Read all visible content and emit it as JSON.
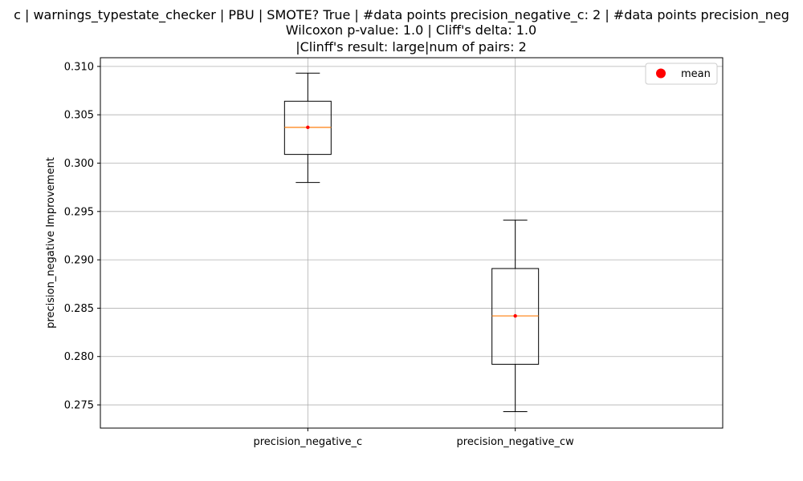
{
  "chart_data": {
    "type": "box",
    "title_lines": [
      "c | warnings_typestate_checker | PBU | SMOTE? True | #data points precision_negative_c: 2 | #data points precision_neg",
      "Wilcoxon p-value: 1.0 | Cliff's delta: 1.0",
      "|Clinff's result: large|num of pairs: 2"
    ],
    "ylabel": "precision_negative Improvement",
    "xlabel": "",
    "ylim": [
      0.2726,
      0.3109
    ],
    "yticks": [
      "0.275",
      "0.280",
      "0.285",
      "0.290",
      "0.295",
      "0.300",
      "0.305",
      "0.310"
    ],
    "grid": true,
    "legend": {
      "position": "top-right",
      "entries": [
        {
          "label": "mean",
          "color": "#ff0000"
        }
      ]
    },
    "categories": [
      "precision_negative_c",
      "precision_negative_cw"
    ],
    "boxes": [
      {
        "name": "precision_negative_c",
        "whisker_low": 0.298,
        "q1": 0.3009,
        "median": 0.3037,
        "q3": 0.3064,
        "whisker_high": 0.3093,
        "mean": 0.3037
      },
      {
        "name": "precision_negative_cw",
        "whisker_low": 0.2743,
        "q1": 0.2792,
        "median": 0.2842,
        "q3": 0.2891,
        "whisker_high": 0.2941,
        "mean": 0.2842
      }
    ],
    "colors": {
      "box": "#000000",
      "median": "#ff7f0e",
      "mean": "#ff0000",
      "grid": "#b0b0b0"
    }
  }
}
